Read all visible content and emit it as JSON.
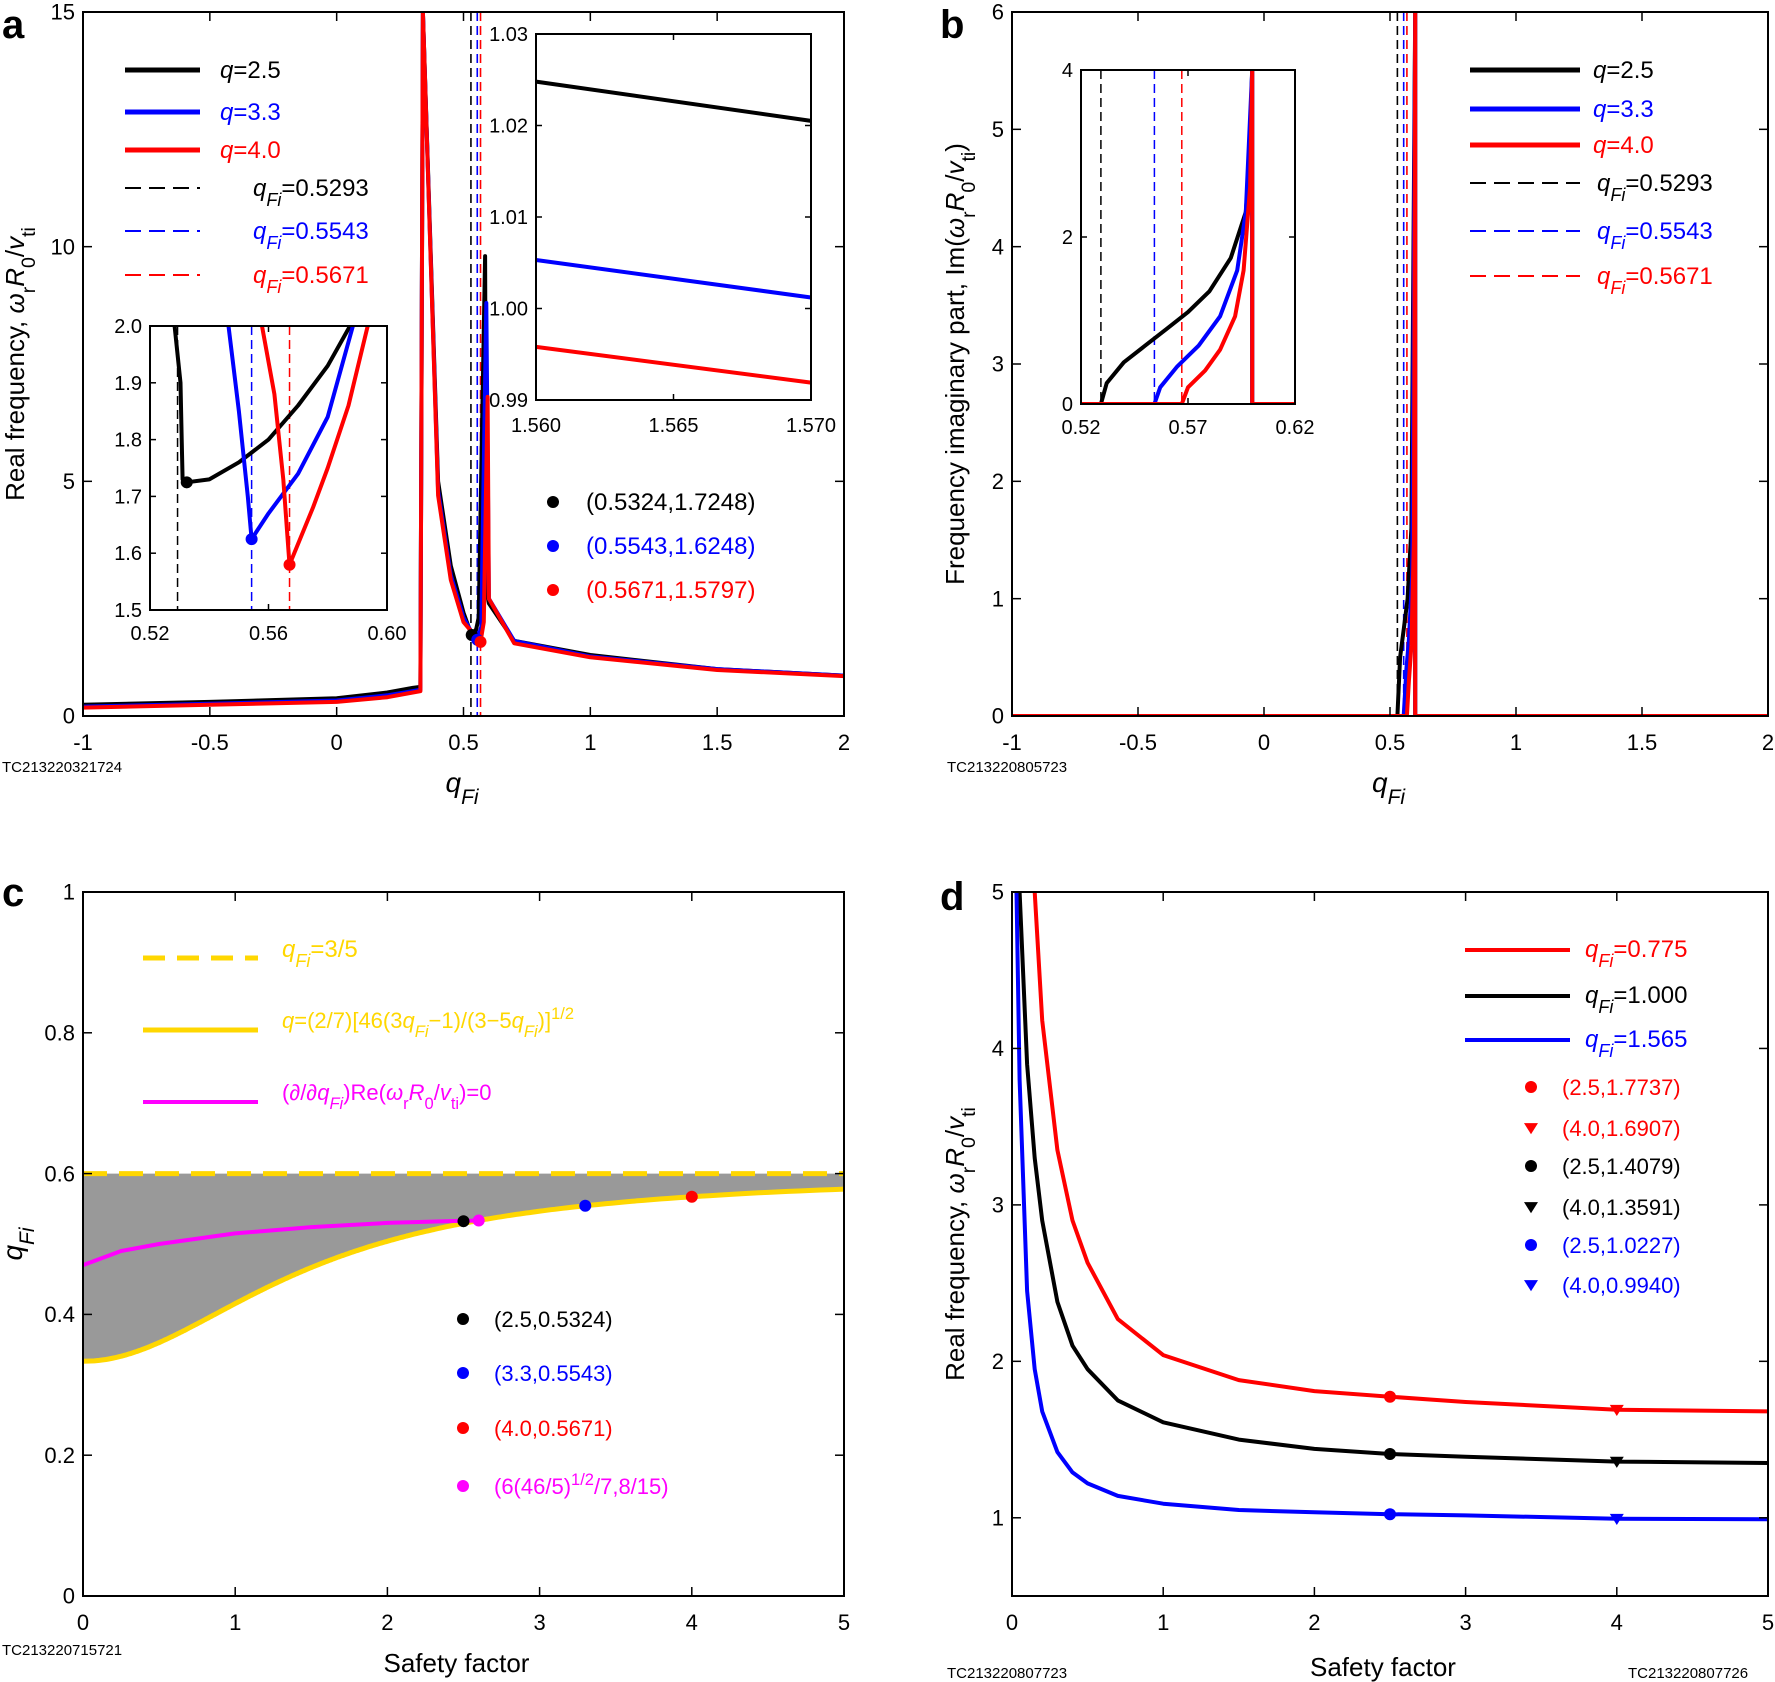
{
  "chart_data": [
    {
      "id": "a",
      "type": "line",
      "panel_label": "a",
      "title": "",
      "xlabel": "qFi",
      "ylabel": "Real frequency, ωrR0/vti",
      "xlim": [
        -1,
        2
      ],
      "ylim": [
        0,
        15
      ],
      "xticks": [
        -1,
        -0.5,
        0,
        0.5,
        1,
        1.5,
        2
      ],
      "xtick_labels": [
        "-1",
        "-0.5",
        "0",
        "0.5",
        "1",
        "1.5",
        "2"
      ],
      "yticks": [
        0,
        5,
        10,
        15
      ],
      "ytick_labels": [
        "0",
        "5",
        "10",
        "15"
      ],
      "series": [
        {
          "name": "q=2.5",
          "color": "#000000",
          "x": [
            -1,
            -0.5,
            0,
            0.2,
            0.3,
            0.33,
            0.34,
            0.4,
            0.45,
            0.5,
            0.52,
            0.5324,
            0.55,
            0.56,
            0.585,
            0.59,
            0.6,
            0.7,
            1,
            1.5,
            2
          ],
          "y": [
            0.24,
            0.3,
            0.38,
            0.5,
            0.6,
            0.62,
            15,
            5,
            3.2,
            2.2,
            1.9,
            1.72,
            1.85,
            2.1,
            9.8,
            2.7,
            2.4,
            1.6,
            1.3,
            1.0,
            0.86
          ]
        },
        {
          "name": "q=3.3",
          "color": "#0000ff",
          "x": [
            -1,
            -0.5,
            0,
            0.2,
            0.3,
            0.33,
            0.34,
            0.4,
            0.45,
            0.5,
            0.53,
            0.5543,
            0.57,
            0.59,
            0.6,
            0.7,
            1,
            1.5,
            2
          ],
          "y": [
            0.2,
            0.26,
            0.33,
            0.44,
            0.53,
            0.56,
            15,
            4.8,
            3.0,
            2.1,
            1.8,
            1.62,
            1.9,
            8.8,
            2.5,
            1.6,
            1.27,
            1.0,
            0.86
          ]
        },
        {
          "name": "q=4.0",
          "color": "#ff0000",
          "x": [
            -1,
            -0.5,
            0,
            0.2,
            0.3,
            0.33,
            0.34,
            0.4,
            0.45,
            0.5,
            0.54,
            0.5671,
            0.58,
            0.595,
            0.6,
            0.7,
            1,
            1.5,
            2
          ],
          "y": [
            0.18,
            0.24,
            0.3,
            0.4,
            0.5,
            0.53,
            15,
            4.7,
            2.9,
            2.0,
            1.75,
            1.58,
            2.0,
            6.8,
            2.5,
            1.55,
            1.25,
            0.98,
            0.85
          ]
        }
      ],
      "vlines": [
        {
          "name": "qFi=0.5293",
          "x": 0.5293,
          "color": "#000000"
        },
        {
          "name": "qFi=0.5543",
          "x": 0.5543,
          "color": "#0000ff"
        },
        {
          "name": "qFi=0.5671",
          "x": 0.5671,
          "color": "#ff0000"
        }
      ],
      "legend": [
        "q=2.5",
        "q=3.3",
        "q=4.0",
        "qFi=0.5293",
        "qFi=0.5543",
        "qFi=0.5671"
      ],
      "legend_position": "top-left",
      "points": [
        {
          "label": "(0.5324,1.7248)",
          "x": 0.5324,
          "y": 1.7248,
          "color": "#000000"
        },
        {
          "label": "(0.5543,1.6248)",
          "x": 0.5543,
          "y": 1.6248,
          "color": "#0000ff"
        },
        {
          "label": "(0.5671,1.5797)",
          "x": 0.5671,
          "y": 1.5797,
          "color": "#ff0000"
        }
      ],
      "insets": [
        {
          "name": "inset-left",
          "xlim": [
            0.52,
            0.6
          ],
          "ylim": [
            1.5,
            2.0
          ],
          "xtick_labels": [
            "0.52",
            "0.56",
            "0.60"
          ],
          "ytick_labels": [
            "1.5",
            "1.6",
            "1.7",
            "1.8",
            "1.9",
            "2.0"
          ],
          "series": [
            {
              "color": "#000000",
              "x": [
                0.5283,
                0.5303,
                0.5307,
                0.531,
                0.5324,
                0.54,
                0.55,
                0.56,
                0.57,
                0.58,
                0.5875
              ],
              "y": [
                2.0,
                1.9,
                1.8,
                1.73,
                1.7248,
                1.73,
                1.76,
                1.8,
                1.86,
                1.93,
                2.0
              ]
            },
            {
              "color": "#0000ff",
              "x": [
                0.5465,
                0.55,
                0.553,
                0.5543,
                0.56,
                0.57,
                0.58,
                0.5885
              ],
              "y": [
                2.0,
                1.85,
                1.7,
                1.6248,
                1.67,
                1.74,
                1.84,
                2.0
              ]
            },
            {
              "color": "#ff0000",
              "x": [
                0.5578,
                0.562,
                0.565,
                0.5671,
                0.575,
                0.58,
                0.587,
                0.5935
              ],
              "y": [
                2.0,
                1.88,
                1.73,
                1.5797,
                1.68,
                1.75,
                1.86,
                2.0
              ]
            }
          ],
          "vlines": [
            0.5293,
            0.5543,
            0.5671
          ]
        },
        {
          "name": "inset-right",
          "xlim": [
            1.56,
            1.57
          ],
          "ylim": [
            0.99,
            1.03
          ],
          "xtick_labels": [
            "1.560",
            "1.565",
            "1.570"
          ],
          "ytick_labels": [
            "0.99",
            "1.00",
            "1.01",
            "1.02",
            "1.03"
          ],
          "series": [
            {
              "color": "#000000",
              "x": [
                1.56,
                1.57
              ],
              "y": [
                1.0248,
                1.0205
              ]
            },
            {
              "color": "#0000ff",
              "x": [
                1.56,
                1.57
              ],
              "y": [
                1.0053,
                1.0012
              ]
            },
            {
              "color": "#ff0000",
              "x": [
                1.56,
                1.57
              ],
              "y": [
                0.9958,
                0.9919
              ]
            }
          ]
        }
      ],
      "footnote": "TC213220321724"
    },
    {
      "id": "b",
      "type": "line",
      "panel_label": "b",
      "xlabel": "qFi",
      "ylabel": "Frequency imaginary part, Im(ωrR0/vti)",
      "xlim": [
        -1,
        2
      ],
      "ylim": [
        0,
        6
      ],
      "xticks": [
        -1,
        -0.5,
        0,
        0.5,
        1,
        1.5,
        2
      ],
      "xtick_labels": [
        "-1",
        "-0.5",
        "0",
        "0.5",
        "1",
        "1.5",
        "2"
      ],
      "yticks": [
        0,
        1,
        2,
        3,
        4,
        5,
        6
      ],
      "ytick_labels": [
        "0",
        "1",
        "2",
        "3",
        "4",
        "5",
        "6"
      ],
      "series": [
        {
          "name": "q=2.5",
          "color": "#000000",
          "x": [
            -1,
            0.5293,
            0.54,
            0.555,
            0.57,
            0.585,
            0.6,
            0.6,
            2
          ],
          "y": [
            0,
            0,
            0.5,
            0.75,
            1.0,
            1.6,
            6,
            0,
            0
          ]
        },
        {
          "name": "q=3.3",
          "color": "#0000ff",
          "x": [
            -1,
            0.5543,
            0.565,
            0.575,
            0.588,
            0.6,
            0.6,
            2
          ],
          "y": [
            0,
            0,
            0.4,
            0.65,
            1.2,
            6,
            0,
            0
          ]
        },
        {
          "name": "q=4.0",
          "color": "#ff0000",
          "x": [
            -1,
            0.5671,
            0.575,
            0.585,
            0.595,
            0.6,
            0.6,
            2
          ],
          "y": [
            0,
            0,
            0.3,
            0.6,
            1.5,
            6,
            0,
            0
          ]
        }
      ],
      "vlines": [
        {
          "name": "qFi=0.5293",
          "x": 0.5293,
          "color": "#000000"
        },
        {
          "name": "qFi=0.5543",
          "x": 0.5543,
          "color": "#0000ff"
        },
        {
          "name": "qFi=0.5671",
          "x": 0.5671,
          "color": "#ff0000"
        }
      ],
      "legend": [
        "q=2.5",
        "q=3.3",
        "q=4.0",
        "qFi=0.5293",
        "qFi=0.5543",
        "qFi=0.5671"
      ],
      "legend_position": "top-right",
      "insets": [
        {
          "name": "inset-b",
          "xlim": [
            0.52,
            0.62
          ],
          "ylim": [
            0,
            4
          ],
          "xtick_labels": [
            "0.52",
            "0.57",
            "0.62"
          ],
          "ytick_labels": [
            "0",
            "2",
            "4"
          ],
          "series": [
            {
              "color": "#000000",
              "x": [
                0.52,
                0.5293,
                0.532,
                0.54,
                0.55,
                0.56,
                0.57,
                0.58,
                0.59,
                0.597,
                0.5985,
                0.6,
                0.6,
                0.62
              ],
              "y": [
                0,
                0,
                0.25,
                0.5,
                0.7,
                0.9,
                1.1,
                1.35,
                1.75,
                2.3,
                2.8,
                4,
                0,
                0
              ]
            },
            {
              "color": "#0000ff",
              "x": [
                0.52,
                0.5543,
                0.557,
                0.565,
                0.575,
                0.585,
                0.593,
                0.597,
                0.6,
                0.6,
                0.62
              ],
              "y": [
                0,
                0,
                0.2,
                0.45,
                0.7,
                1.05,
                1.6,
                2.3,
                4,
                0,
                0
              ]
            },
            {
              "color": "#ff0000",
              "x": [
                0.52,
                0.5671,
                0.57,
                0.578,
                0.585,
                0.592,
                0.596,
                0.599,
                0.6,
                0.6,
                0.62
              ],
              "y": [
                0,
                0,
                0.2,
                0.4,
                0.65,
                1.05,
                1.6,
                2.6,
                4,
                0,
                0
              ]
            }
          ],
          "vlines": [
            0.5293,
            0.5543,
            0.5671
          ]
        }
      ],
      "footnote": "TC213220805723"
    },
    {
      "id": "c",
      "type": "area",
      "panel_label": "c",
      "xlabel": "Safety factor",
      "ylabel": "qFi",
      "xlim": [
        0,
        5
      ],
      "ylim": [
        0,
        1
      ],
      "xticks": [
        0,
        1,
        2,
        3,
        4,
        5
      ],
      "xtick_labels": [
        "0",
        "1",
        "2",
        "3",
        "4",
        "5"
      ],
      "yticks": [
        0,
        0.2,
        0.4,
        0.6,
        0.8,
        1
      ],
      "ytick_labels": [
        "0",
        "0.2",
        "0.4",
        "0.6",
        "0.8",
        "1"
      ],
      "shaded_region": {
        "color": "#999999",
        "between": [
          "q=(2/7)[46(3qFi−1)/(3−5qFi)]^1/2",
          "qFi=3/5"
        ]
      },
      "series": [
        {
          "name": "qFi=3/5",
          "color": "#ffd700",
          "style": "dashed",
          "x": [
            0,
            5
          ],
          "y": [
            0.6,
            0.6
          ]
        },
        {
          "name": "q=(2/7)[46(3qFi−1)/(3−5qFi)]^1/2",
          "color": "#ffd700",
          "style": "solid",
          "formula": "lower_curve"
        },
        {
          "name": "(∂/∂qFi)Re(ωrR0/vti)=0",
          "color": "#ff00ff",
          "style": "solid",
          "x": [
            0,
            0.25,
            0.5,
            1,
            1.5,
            2,
            2.5,
            2.6
          ],
          "y": [
            0.47,
            0.49,
            0.5,
            0.515,
            0.524,
            0.53,
            0.533,
            0.5333
          ]
        }
      ],
      "legend": [
        "qFi=3/5",
        "q=(2/7)[46(3qFi−1)/(3−5qFi)]1/2",
        "(∂/∂qFi)Re(ωrR0/vti)=0"
      ],
      "legend_position": "top-left",
      "points": [
        {
          "label": "(2.5,0.5324)",
          "x": 2.5,
          "y": 0.5324,
          "color": "#000000"
        },
        {
          "label": "(3.3,0.5543)",
          "x": 3.3,
          "y": 0.5543,
          "color": "#0000ff"
        },
        {
          "label": "(4.0,0.5671)",
          "x": 4.0,
          "y": 0.5671,
          "color": "#ff0000"
        },
        {
          "label": "(6(46/5)1/2/7,8/15)",
          "x": 2.6,
          "y": 0.5333,
          "color": "#ff00ff"
        }
      ],
      "footnote": "TC213220715721"
    },
    {
      "id": "d",
      "type": "line",
      "panel_label": "d",
      "xlabel": "Safety factor",
      "ylabel": "Real frequency, ωrR0/vti",
      "xlim": [
        0,
        5
      ],
      "ylim": [
        0.5,
        5
      ],
      "xticks": [
        0,
        1,
        2,
        3,
        4,
        5
      ],
      "xtick_labels": [
        "0",
        "1",
        "2",
        "3",
        "4",
        "5"
      ],
      "yticks": [
        1,
        2,
        3,
        4,
        5
      ],
      "ytick_labels": [
        "1",
        "2",
        "3",
        "4",
        "5"
      ],
      "series": [
        {
          "name": "qFi=0.775",
          "color": "#ff0000",
          "x": [
            0.15,
            0.2,
            0.3,
            0.4,
            0.5,
            0.7,
            1,
            1.5,
            2,
            2.5,
            3,
            4,
            5
          ],
          "y": [
            5.0,
            4.18,
            3.35,
            2.9,
            2.63,
            2.27,
            2.04,
            1.88,
            1.81,
            1.7737,
            1.74,
            1.6907,
            1.68
          ]
        },
        {
          "name": "qFi=1.000",
          "color": "#000000",
          "x": [
            0.05,
            0.1,
            0.15,
            0.2,
            0.3,
            0.4,
            0.5,
            0.7,
            1,
            1.5,
            2,
            2.5,
            3,
            4,
            5
          ],
          "y": [
            5.0,
            3.9,
            3.3,
            2.9,
            2.38,
            2.1,
            1.95,
            1.75,
            1.61,
            1.5,
            1.44,
            1.4079,
            1.39,
            1.3591,
            1.35
          ]
        },
        {
          "name": "qFi=1.565",
          "color": "#0000ff",
          "x": [
            0.03,
            0.05,
            0.1,
            0.15,
            0.2,
            0.3,
            0.4,
            0.5,
            0.7,
            1,
            1.5,
            2,
            2.5,
            3,
            4,
            5
          ],
          "y": [
            5.0,
            3.8,
            2.45,
            1.95,
            1.68,
            1.42,
            1.29,
            1.22,
            1.14,
            1.09,
            1.05,
            1.035,
            1.0227,
            1.015,
            0.994,
            0.99
          ]
        }
      ],
      "legend": [
        "qFi=0.775",
        "qFi=1.000",
        "qFi=1.565"
      ],
      "legend_position": "top-right",
      "points": [
        {
          "label": "(2.5,1.7737)",
          "x": 2.5,
          "y": 1.7737,
          "marker": "circle",
          "color": "#ff0000"
        },
        {
          "label": "(4.0,1.6907)",
          "x": 4.0,
          "y": 1.6907,
          "marker": "triangle",
          "color": "#ff0000"
        },
        {
          "label": "(2.5,1.4079)",
          "x": 2.5,
          "y": 1.4079,
          "marker": "circle",
          "color": "#000000"
        },
        {
          "label": "(4.0,1.3591)",
          "x": 4.0,
          "y": 1.3591,
          "marker": "triangle",
          "color": "#000000"
        },
        {
          "label": "(2.5,1.0227)",
          "x": 2.5,
          "y": 1.0227,
          "marker": "circle",
          "color": "#0000ff"
        },
        {
          "label": "(4.0,0.9940)",
          "x": 4.0,
          "y": 0.994,
          "marker": "triangle",
          "color": "#0000ff"
        }
      ],
      "footnote": "TC213220807723",
      "footnote_right": "TC213220807726"
    }
  ]
}
